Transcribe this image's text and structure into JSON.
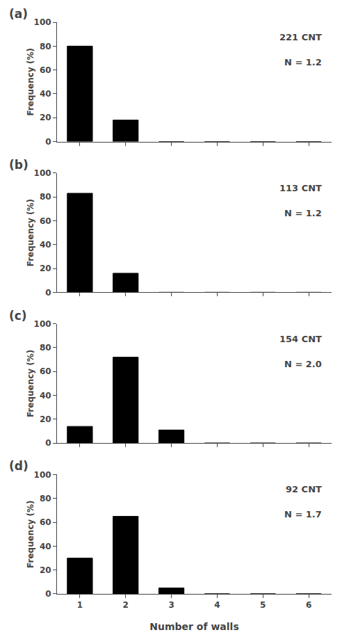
{
  "chart_data": [
    {
      "type": "bar",
      "title": "(a)",
      "x": [
        1,
        2,
        3,
        4,
        5,
        6
      ],
      "values": [
        80,
        18,
        0,
        0,
        0,
        0
      ],
      "color": "#000000",
      "xlim": [
        0.5,
        6.5
      ],
      "xticks": [
        1,
        2,
        3,
        4,
        5,
        6
      ],
      "ylim": [
        0,
        100
      ],
      "yticks": [
        0,
        20,
        40,
        60,
        80,
        100
      ],
      "y_label": "Frequency (%)",
      "annotations": [
        "221 CNT",
        "N = 1.2"
      ],
      "grid": false,
      "tick_labels": "y"
    },
    {
      "type": "bar",
      "title": "(b)",
      "x": [
        1,
        2,
        3,
        4,
        5,
        6
      ],
      "values": [
        83,
        16,
        0,
        0,
        0,
        0
      ],
      "color": "#000000",
      "xlim": [
        0.5,
        6.5
      ],
      "xticks": [
        1,
        2,
        3,
        4,
        5,
        6
      ],
      "ylim": [
        0,
        100
      ],
      "yticks": [
        0,
        20,
        40,
        60,
        80,
        100
      ],
      "y_label": "Frequency (%)",
      "annotations": [
        "113 CNT",
        "N = 1.2"
      ],
      "grid": false,
      "tick_labels": "y"
    },
    {
      "type": "bar",
      "title": "(c)",
      "x": [
        1,
        2,
        3,
        4,
        5,
        6
      ],
      "values": [
        14,
        72,
        11,
        0,
        0,
        0
      ],
      "color": "#000000",
      "xlim": [
        0.5,
        6.5
      ],
      "xticks": [
        1,
        2,
        3,
        4,
        5,
        6
      ],
      "ylim": [
        0,
        100
      ],
      "yticks": [
        0,
        20,
        40,
        60,
        80,
        100
      ],
      "y_label": "Frequency (%)",
      "annotations": [
        "154 CNT",
        "N = 2.0"
      ],
      "grid": false,
      "tick_labels": "y"
    },
    {
      "type": "bar",
      "title": "(d)",
      "x": [
        1,
        2,
        3,
        4,
        5,
        6
      ],
      "values": [
        30,
        65,
        5,
        0,
        0,
        0
      ],
      "color": "#000000",
      "xlim": [
        0.5,
        6.5
      ],
      "xticks": [
        1,
        2,
        3,
        4,
        5,
        6
      ],
      "ylim": [
        0,
        100
      ],
      "yticks": [
        0,
        20,
        40,
        60,
        80,
        100
      ],
      "x_label": "Number of walls",
      "y_label": "Frequency (%)",
      "annotations": [
        "92 CNT",
        "N = 1.7"
      ],
      "grid": false
    }
  ]
}
